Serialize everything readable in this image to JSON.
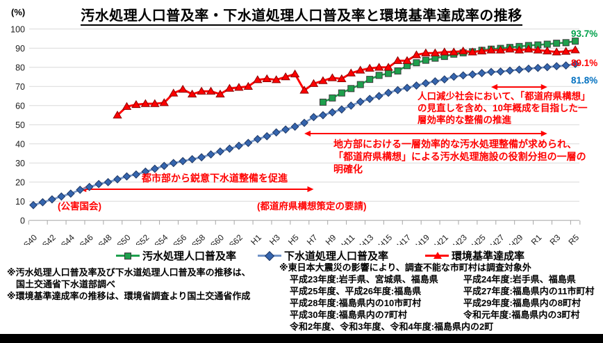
{
  "chart_data": {
    "type": "line",
    "title": "汚水処理人口普及率・下水道処理人口普及率と環境基準達成率の推移",
    "unit_label": "(%)",
    "ylim": [
      0,
      100
    ],
    "y_ticks": [
      0,
      10,
      20,
      30,
      40,
      50,
      60,
      70,
      80,
      90,
      100
    ],
    "grid": true,
    "legend_position": "bottom",
    "start_year": 1965,
    "end_year": 2023,
    "x_tick_labels": [
      "S40",
      "S42",
      "S44",
      "S46",
      "S48",
      "S50",
      "S52",
      "S54",
      "S56",
      "S58",
      "S60",
      "S62",
      "H1",
      "H3",
      "H5",
      "H7",
      "H9",
      "H11",
      "H13",
      "H15",
      "H17",
      "H19",
      "H21",
      "H23",
      "H25",
      "H27",
      "H29",
      "R1",
      "R3",
      "R5"
    ],
    "annotation_color": "#ff0000",
    "series": [
      {
        "name": "汚水処理人口普及率",
        "marker": "square",
        "color": "#1ea04d",
        "marker_stroke": "#3a3a3a",
        "start_year": 1996,
        "end_label": "93.7%",
        "end_label_color": "#00a14b",
        "values": [
          61.8,
          64,
          66.6,
          68.9,
          71,
          73.7,
          75.8,
          76.8,
          78.1,
          80.9,
          82.4,
          83.7,
          84.8,
          85.7,
          86.9,
          87.6,
          88.1,
          88.9,
          89.5,
          89.9,
          90.4,
          90.9,
          91.4,
          91.7,
          92.1,
          92.6,
          92.9,
          93.7
        ]
      },
      {
        "name": "下水道処理人口普及率",
        "marker": "diamond",
        "color": "#3565ae",
        "line_color": "#7093c8",
        "marker_stroke": "#1f3864",
        "start_year": 1965,
        "end_label": "81.8%",
        "end_label_color": "#0070c0",
        "values": [
          8,
          9.5,
          11,
          12.5,
          14,
          16,
          17.5,
          19,
          20,
          21.5,
          23,
          24,
          25.5,
          27,
          28.5,
          30,
          31,
          32,
          33,
          34.5,
          36,
          37.5,
          39,
          40.5,
          42.5,
          44,
          46,
          47.5,
          49,
          51,
          54,
          55,
          56.5,
          58,
          60,
          62,
          63.5,
          65,
          66.7,
          68.1,
          69.3,
          70.5,
          71.7,
          72.7,
          73.7,
          75.1,
          75.8,
          76.3,
          77,
          77.6,
          77.8,
          78.3,
          78.8,
          79.3,
          79.7,
          80.1,
          80.6,
          81,
          81.8
        ]
      },
      {
        "name": "環境基準達成率",
        "marker": "triangle",
        "color": "#ff0000",
        "marker_stroke": "#8b0000",
        "start_year": 1974,
        "end_label": "89.1%",
        "end_label_color": "#ff0000",
        "values": [
          55,
          59.5,
          60.5,
          61,
          61,
          61.5,
          66.5,
          68.5,
          66,
          67.5,
          67.5,
          66,
          69,
          69.5,
          70,
          73.5,
          74,
          73.5,
          75,
          76.5,
          68,
          71.5,
          73,
          74.5,
          74,
          77,
          78.5,
          79.5,
          80,
          80,
          83.5,
          83.5,
          86.5,
          87.5,
          87.5,
          88,
          88,
          88.5,
          88,
          88.5,
          89,
          89,
          89.5,
          89,
          89.5,
          89,
          88.5,
          88,
          88.3,
          89.1
        ]
      }
    ],
    "annotations": {
      "urban": {
        "label": "都市部から鋭意下水道整備を促進",
        "note_left": "(公害国会)",
        "note_right": "(都道府県構想策定の要請)",
        "from_year": 1970,
        "to_year": 1995,
        "y_pct": 16.3
      },
      "regional": {
        "lines": [
          "地方部における一層効率的な汚水処理整備が求められ、",
          "「都道府県構想」による汚水処理施設の役割分担の一層の",
          "明確化"
        ],
        "from_year": 1994,
        "to_year": 2020,
        "y_pct": 45.4
      },
      "population": {
        "lines": [
          "人口減少社会において、「都道府県構想」",
          "の見直しを含め、10年概成を目指した一",
          "層効率的な整備の推進"
        ],
        "from_year": 2014,
        "to_year": 2020,
        "y_pct": 69.7
      }
    }
  },
  "notes": {
    "left": [
      "※汚水処理人口普及率及び下水道処理人口普及率の推移は、",
      "　国土交通省下水道部調べ",
      "※環境基準達成率の推移は、環境省調査より国土交通省作成"
    ],
    "right_title": "※東日本大震災の影響により、調査不能な市町村は調査対象外",
    "right_rows": [
      [
        "平成23年度:岩手県、宮城県、福島県",
        "平成24年度:岩手県、福島県"
      ],
      [
        "平成25年度、平成26年度:福島県",
        "平成27年度:福島県内の11市町村"
      ],
      [
        "平成28年度:福島県内の10市町村",
        "平成29年度:福島県内の8町村"
      ],
      [
        "平成30年度:福島県内の7町村",
        "令和元年度:福島県内の3町村"
      ],
      [
        "令和2年度、令和3年度、令和4年度:福島県内の2町",
        ""
      ]
    ]
  }
}
